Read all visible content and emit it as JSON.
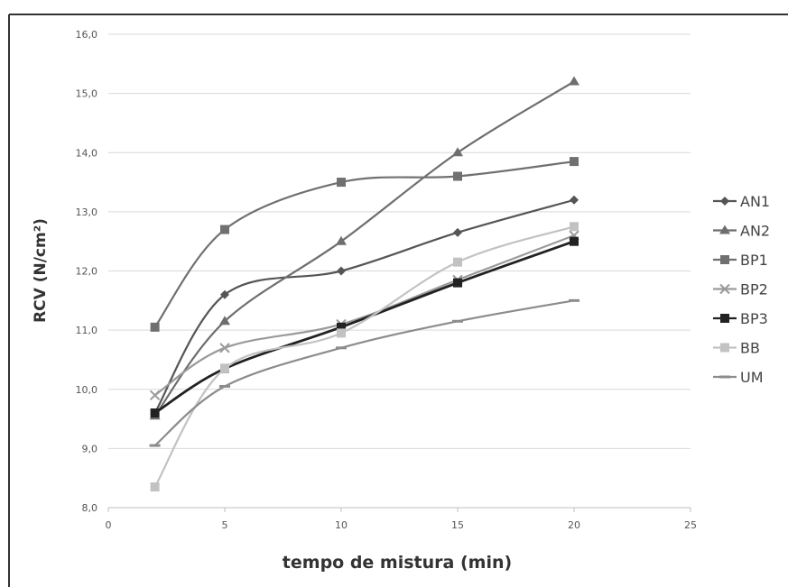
{
  "chart_data": {
    "type": "line",
    "xlabel": "tempo de mistura (min)",
    "ylabel": "RCV (N/cm²)",
    "xlim": [
      0,
      25
    ],
    "ylim": [
      8.0,
      16.0
    ],
    "x_ticks": [
      "0",
      "5",
      "10",
      "15",
      "20",
      "25"
    ],
    "y_ticks": [
      "8,0",
      "9,0",
      "10,0",
      "11,0",
      "12,0",
      "13,0",
      "14,0",
      "15,0",
      "16,0"
    ],
    "grid": "horizontal",
    "legend_position": "right",
    "x": [
      2,
      5,
      10,
      15,
      20
    ],
    "series": [
      {
        "name": "AN1",
        "values": [
          9.6,
          11.6,
          12.0,
          12.65,
          13.2
        ],
        "color": "#555555",
        "marker": "diamond"
      },
      {
        "name": "AN2",
        "values": [
          9.55,
          11.15,
          12.5,
          14.0,
          15.2
        ],
        "color": "#6e6e6e",
        "marker": "triangle"
      },
      {
        "name": "BP1",
        "values": [
          11.05,
          12.7,
          13.5,
          13.6,
          13.85
        ],
        "color": "#707070",
        "marker": "square"
      },
      {
        "name": "BP2",
        "values": [
          9.9,
          10.7,
          11.1,
          11.85,
          12.6
        ],
        "color": "#9a9a9a",
        "marker": "x"
      },
      {
        "name": "BP3",
        "values": [
          9.6,
          10.35,
          11.05,
          11.8,
          12.5
        ],
        "color": "#222222",
        "marker": "square"
      },
      {
        "name": "BB",
        "values": [
          8.35,
          10.35,
          10.95,
          12.15,
          12.75
        ],
        "color": "#c2c2c2",
        "marker": "square"
      },
      {
        "name": "UM",
        "values": [
          9.05,
          10.05,
          10.7,
          11.15,
          11.5
        ],
        "color": "#8c8c8c",
        "marker": "dash"
      }
    ]
  }
}
